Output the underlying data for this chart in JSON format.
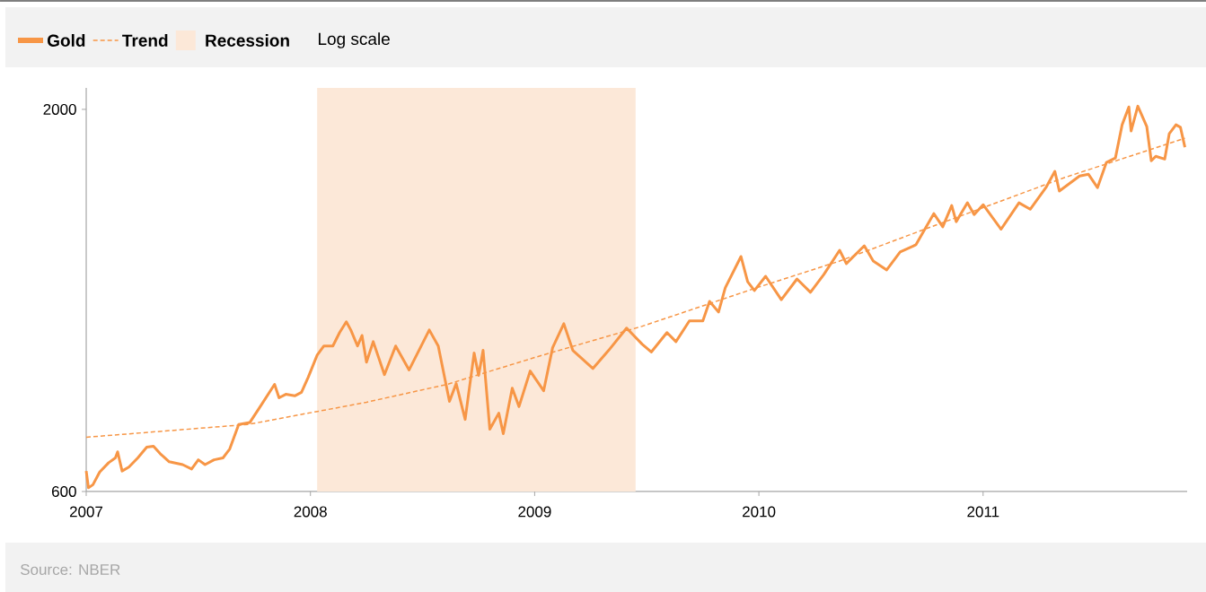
{
  "chart_data": {
    "type": "line",
    "log": "y",
    "legend": "top left",
    "xlim": [
      2007,
      2011.91
    ],
    "xticks": [
      2007,
      2008,
      2009,
      2010,
      2011
    ],
    "ylim": [
      600,
      2140
    ],
    "yticks": [
      600,
      2000
    ],
    "bands": [
      {
        "axis": "x",
        "from": 2008.03,
        "to": 2009.45,
        "label": "Recession",
        "color": "#fce8d8"
      }
    ],
    "annotations": [
      "Log scale",
      "Source: NBER"
    ],
    "series": [
      {
        "name": "Gold",
        "color": "#f79646",
        "line_style": "solid",
        "x": [
          2007.0,
          2007.01,
          2007.03,
          2007.06,
          2007.1,
          2007.13,
          2007.14,
          2007.16,
          2007.19,
          2007.23,
          2007.27,
          2007.3,
          2007.33,
          2007.37,
          2007.43,
          2007.47,
          2007.5,
          2007.53,
          2007.57,
          2007.61,
          2007.64,
          2007.68,
          2007.73,
          2007.77,
          2007.84,
          2007.86,
          2007.89,
          2007.93,
          2007.96,
          2007.99,
          2008.03,
          2008.06,
          2008.1,
          2008.13,
          2008.16,
          2008.18,
          2008.21,
          2008.23,
          2008.25,
          2008.28,
          2008.33,
          2008.38,
          2008.44,
          2008.53,
          2008.57,
          2008.62,
          2008.65,
          2008.69,
          2008.73,
          2008.75,
          2008.77,
          2008.8,
          2008.84,
          2008.86,
          2008.9,
          2008.93,
          2008.98,
          2009.04,
          2009.08,
          2009.13,
          2009.17,
          2009.26,
          2009.33,
          2009.41,
          2009.48,
          2009.52,
          2009.59,
          2009.63,
          2009.69,
          2009.75,
          2009.78,
          2009.82,
          2009.85,
          2009.92,
          2009.95,
          2009.98,
          2010.03,
          2010.1,
          2010.17,
          2010.23,
          2010.29,
          2010.36,
          2010.39,
          2010.47,
          2010.51,
          2010.57,
          2010.63,
          2010.7,
          2010.78,
          2010.82,
          2010.86,
          2010.88,
          2010.93,
          2010.96,
          2011.0,
          2011.08,
          2011.16,
          2011.21,
          2011.28,
          2011.32,
          2011.34,
          2011.43,
          2011.47,
          2011.51,
          2011.55,
          2011.59,
          2011.62,
          2011.65,
          2011.66,
          2011.69,
          2011.73,
          2011.75,
          2011.77,
          2011.81,
          2011.83,
          2011.86,
          2011.88,
          2011.9
        ],
        "values": [
          640,
          607,
          613,
          638,
          657,
          667,
          680,
          640,
          648,
          667,
          690,
          692,
          676,
          659,
          653,
          644,
          663,
          653,
          663,
          667,
          686,
          741,
          746,
          779,
          841,
          806,
          815,
          811,
          820,
          860,
          922,
          949,
          949,
          990,
          1024,
          998,
          949,
          981,
          902,
          962,
          867,
          949,
          880,
          998,
          949,
          797,
          843,
          753,
          928,
          865,
          936,
          730,
          768,
          720,
          831,
          784,
          877,
          824,
          944,
          1018,
          936,
          884,
          936,
          1004,
          954,
          931,
          990,
          962,
          1027,
          1027,
          1092,
          1056,
          1140,
          1258,
          1162,
          1130,
          1182,
          1098,
          1172,
          1124,
          1189,
          1283,
          1230,
          1301,
          1240,
          1206,
          1276,
          1305,
          1440,
          1381,
          1477,
          1404,
          1490,
          1436,
          1481,
          1371,
          1490,
          1460,
          1563,
          1645,
          1546,
          1621,
          1630,
          1563,
          1692,
          1716,
          1905,
          2015,
          1868,
          2020,
          1894,
          1701,
          1725,
          1710,
          1852,
          1905,
          1890,
          1775
        ]
      },
      {
        "name": "Trend",
        "color": "#f79646",
        "line_style": "dashed",
        "x": [
          2007.0,
          2007.72,
          2008.25,
          2008.61,
          2009.01,
          2009.48,
          2009.99,
          2010.36,
          2010.74,
          2011.36,
          2011.9
        ],
        "values": [
          712,
          741,
          795,
          841,
          917,
          1010,
          1140,
          1240,
          1371,
          1612,
          1826
        ]
      }
    ]
  }
}
